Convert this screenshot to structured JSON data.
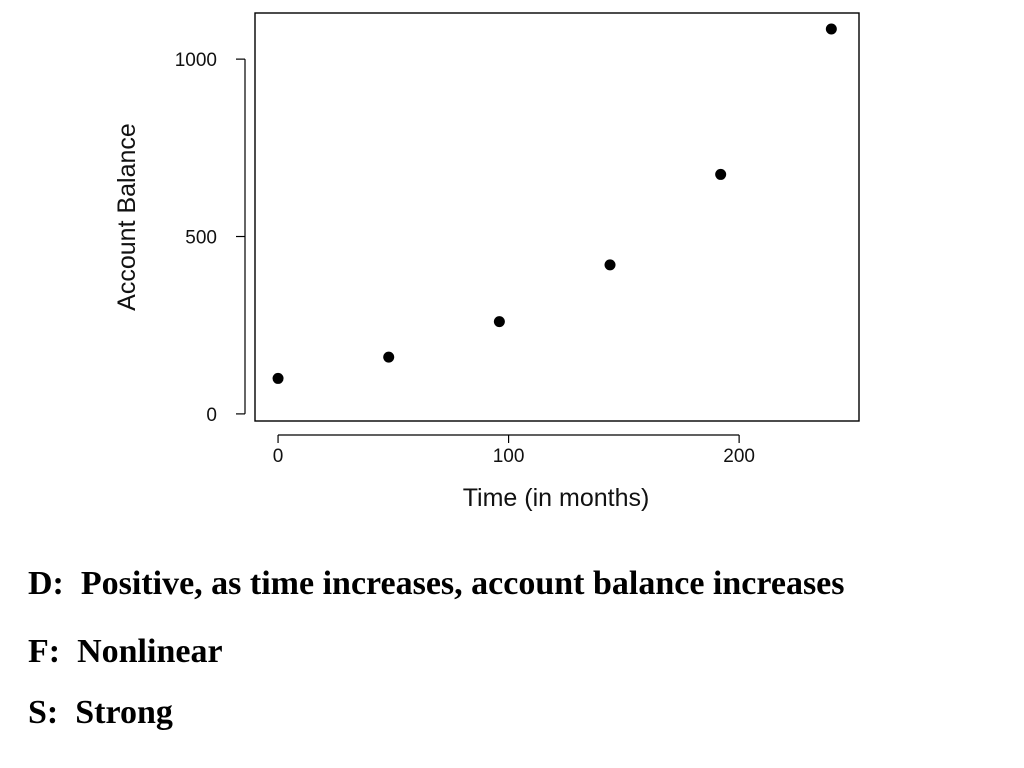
{
  "chart_data": {
    "type": "scatter",
    "xlabel": "Time (in months)",
    "ylabel": "Account Balance",
    "xlim": [
      -10,
      252
    ],
    "ylim": [
      -20,
      1130
    ],
    "x_ticks": [
      0,
      100,
      200
    ],
    "y_ticks": [
      0,
      500,
      1000
    ],
    "grid": false,
    "points": [
      {
        "x": 0,
        "y": 100
      },
      {
        "x": 48,
        "y": 160
      },
      {
        "x": 96,
        "y": 260
      },
      {
        "x": 144,
        "y": 420
      },
      {
        "x": 192,
        "y": 675
      },
      {
        "x": 240,
        "y": 1085
      }
    ],
    "colors": {
      "points": "#000000",
      "axes": "#000000"
    }
  },
  "conclusions": {
    "direction": "D:  Positive, as time increases, account balance increases",
    "form": "F:  Nonlinear",
    "strength": "S:  Strong"
  }
}
